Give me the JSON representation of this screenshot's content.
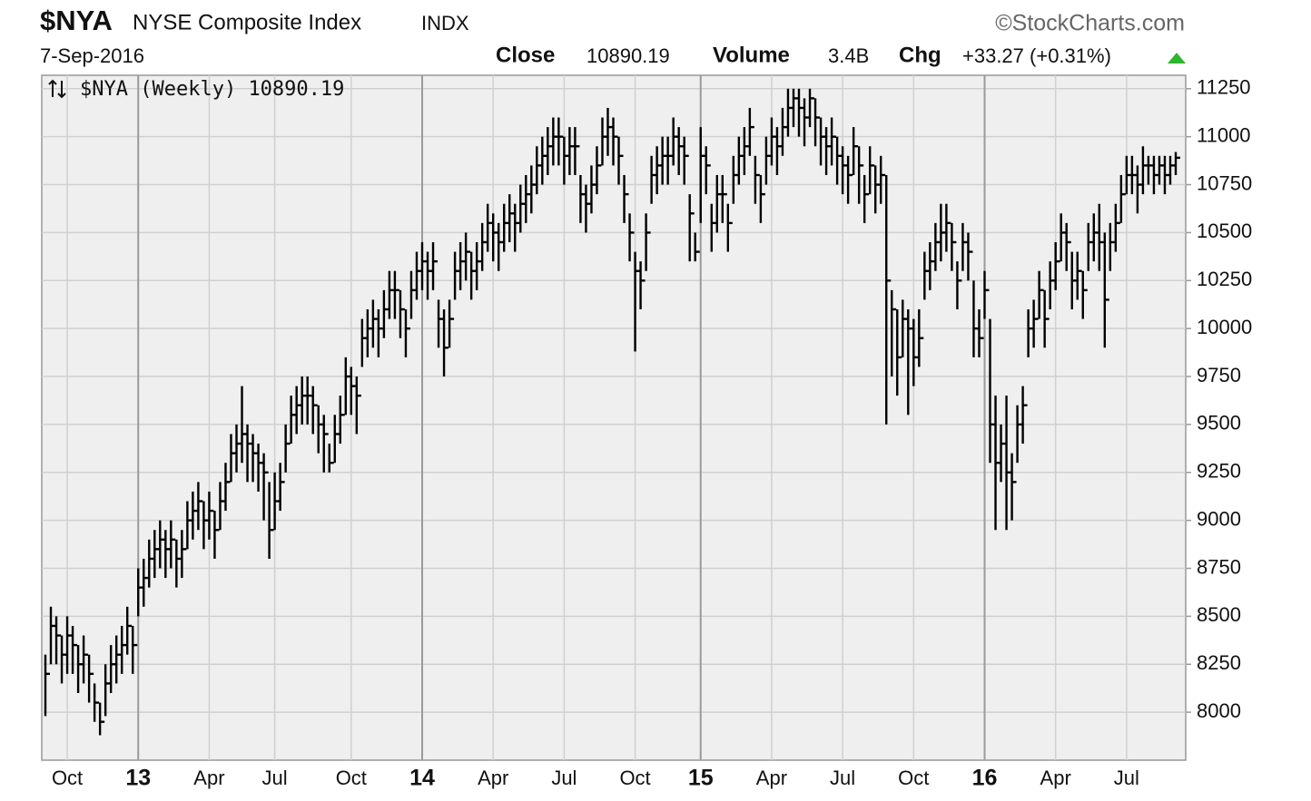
{
  "header": {
    "symbol": "$NYA",
    "name": "NYSE Composite Index",
    "exchange": "INDX",
    "source": "©StockCharts.com",
    "date": "7-Sep-2016",
    "close_label": "Close",
    "close": 10890.19,
    "volume_label": "Volume",
    "volume": "3.4B",
    "change_label": "Chg",
    "change": "+33.27 (+0.31%)"
  },
  "chart_data": {
    "type": "hlc",
    "legend_label": "$NYA (Weekly)",
    "legend_value": 10890.19,
    "categories": [
      null,
      null,
      null,
      null,
      "Oct",
      null,
      null,
      null,
      null,
      null,
      null,
      null,
      null,
      null,
      null,
      null,
      null,
      "13",
      null,
      null,
      null,
      null,
      null,
      null,
      null,
      null,
      null,
      null,
      null,
      null,
      "Apr",
      null,
      null,
      null,
      null,
      null,
      null,
      null,
      null,
      null,
      null,
      null,
      "Jul",
      null,
      null,
      null,
      null,
      null,
      null,
      null,
      null,
      null,
      null,
      null,
      null,
      null,
      "Oct",
      null,
      null,
      null,
      null,
      null,
      null,
      null,
      null,
      null,
      null,
      null,
      null,
      "14",
      null,
      null,
      null,
      null,
      null,
      null,
      null,
      null,
      null,
      null,
      null,
      null,
      "Apr",
      null,
      null,
      null,
      null,
      null,
      null,
      null,
      null,
      null,
      null,
      null,
      null,
      "Jul",
      null,
      null,
      null,
      null,
      null,
      null,
      null,
      null,
      null,
      null,
      null,
      null,
      "Oct",
      null,
      null,
      null,
      null,
      null,
      null,
      null,
      null,
      null,
      null,
      null,
      "15",
      null,
      null,
      null,
      null,
      null,
      null,
      null,
      null,
      null,
      null,
      null,
      null,
      "Apr",
      null,
      null,
      null,
      null,
      null,
      null,
      null,
      null,
      null,
      null,
      null,
      null,
      "Jul",
      null,
      null,
      null,
      null,
      null,
      null,
      null,
      null,
      null,
      null,
      null,
      null,
      "Oct",
      null,
      null,
      null,
      null,
      null,
      null,
      null,
      null,
      null,
      null,
      null,
      null,
      "16",
      null,
      null,
      null,
      null,
      null,
      null,
      null,
      null,
      null,
      null,
      null,
      null,
      "Apr",
      null,
      null,
      null,
      null,
      null,
      null,
      null,
      null,
      null,
      null,
      null,
      null,
      "Jul",
      null,
      null,
      null,
      null,
      null,
      null,
      null,
      null,
      null
    ],
    "series": [
      {
        "name": "$NYA",
        "color": "#000000",
        "values": [
          8200,
          8450,
          8400,
          8300,
          8400,
          8350,
          8250,
          8300,
          8200,
          8050,
          7950,
          8150,
          8250,
          8300,
          8350,
          8450,
          8350,
          8650,
          8700,
          8800,
          8850,
          8900,
          8850,
          8900,
          8800,
          8850,
          9000,
          9050,
          9100,
          9000,
          9050,
          8950,
          9100,
          9200,
          9350,
          9400,
          9450,
          9400,
          9350,
          9300,
          9250,
          8950,
          9100,
          9200,
          9400,
          9550,
          9600,
          9650,
          9650,
          9600,
          9500,
          9450,
          9300,
          9450,
          9550,
          9750,
          9700,
          9650,
          9950,
          10000,
          10050,
          10000,
          10100,
          10200,
          10200,
          10100,
          10000,
          10200,
          10300,
          10350,
          10300,
          10350,
          10050,
          9900,
          10050,
          10300,
          10350,
          10400,
          10300,
          10350,
          10450,
          10550,
          10500,
          10450,
          10550,
          10600,
          10550,
          10650,
          10700,
          10750,
          10850,
          10900,
          10950,
          11000,
          11000,
          10900,
          10950,
          10950,
          10700,
          10650,
          10750,
          10850,
          11000,
          11050,
          11000,
          10900,
          10700,
          10500,
          10300,
          10250,
          10500,
          10800,
          10850,
          10900,
          10900,
          11000,
          10950,
          10900,
          10600,
          10400,
          10900,
          10850,
          10550,
          10700,
          10700,
          10550,
          10800,
          10900,
          10950,
          11050,
          10800,
          10700,
          10900,
          11000,
          10950,
          11050,
          11150,
          11200,
          11150,
          11100,
          11200,
          11100,
          11000,
          10950,
          11000,
          10900,
          10850,
          10800,
          10950,
          10850,
          10700,
          10850,
          10750,
          10800,
          10250,
          10100,
          9850,
          10050,
          10000,
          9850,
          9950,
          10300,
          10350,
          10450,
          10500,
          10550,
          10450,
          10250,
          10450,
          10400,
          10000,
          9950,
          10200,
          9500,
          9300,
          9400,
          9250,
          9200,
          9500,
          9600,
          10000,
          10050,
          10200,
          10050,
          10250,
          10350,
          10500,
          10450,
          10250,
          10300,
          10200,
          10450,
          10500,
          10450,
          10150,
          10450,
          10550,
          10700,
          10800,
          10800,
          10750,
          10850,
          10850,
          10800,
          10850,
          10800,
          10850,
          10890.19
        ],
        "high": [
          8300,
          8550,
          8500,
          8400,
          8500,
          8450,
          8350,
          8400,
          8300,
          8150,
          8050,
          8250,
          8350,
          8400,
          8450,
          8550,
          8450,
          8750,
          8800,
          8900,
          8950,
          9000,
          8950,
          9000,
          8900,
          8950,
          9100,
          9150,
          9200,
          9100,
          9150,
          9050,
          9200,
          9300,
          9450,
          9500,
          9700,
          9500,
          9450,
          9400,
          9350,
          9200,
          9250,
          9300,
          9500,
          9650,
          9700,
          9750,
          9750,
          9700,
          9600,
          9550,
          9400,
          9550,
          9650,
          9850,
          9800,
          9750,
          10050,
          10100,
          10150,
          10100,
          10200,
          10300,
          10300,
          10200,
          10100,
          10300,
          10400,
          10450,
          10400,
          10450,
          10150,
          10100,
          10150,
          10400,
          10450,
          10500,
          10400,
          10450,
          10550,
          10650,
          10600,
          10550,
          10650,
          10700,
          10650,
          10750,
          10800,
          10850,
          10950,
          11000,
          11050,
          11100,
          11100,
          11000,
          11050,
          11050,
          10800,
          10750,
          10850,
          10950,
          11100,
          11150,
          11100,
          11000,
          10800,
          10600,
          10400,
          10350,
          10600,
          10900,
          10950,
          11000,
          11000,
          11100,
          11050,
          11000,
          10700,
          10500,
          11050,
          10950,
          10650,
          10800,
          10800,
          10650,
          10900,
          11000,
          11050,
          11150,
          10900,
          10800,
          11000,
          11100,
          11050,
          11150,
          11250,
          11250,
          11250,
          11200,
          11250,
          11200,
          11100,
          11050,
          11100,
          11000,
          10950,
          10900,
          11050,
          10950,
          10800,
          10950,
          10850,
          10900,
          10800,
          10200,
          10100,
          10150,
          10100,
          10050,
          10100,
          10400,
          10450,
          10550,
          10650,
          10650,
          10550,
          10350,
          10550,
          10500,
          10250,
          10100,
          10300,
          10050,
          9650,
          9500,
          9650,
          9350,
          9600,
          9700,
          10100,
          10150,
          10300,
          10200,
          10350,
          10450,
          10600,
          10550,
          10400,
          10400,
          10300,
          10550,
          10600,
          10650,
          10500,
          10550,
          10650,
          10800,
          10900,
          10900,
          10850,
          10950,
          10900,
          10900,
          10900,
          10900,
          10900,
          10920
        ],
        "low": [
          7980,
          8250,
          8250,
          8150,
          8200,
          8200,
          8100,
          8150,
          8050,
          7950,
          7880,
          7980,
          8100,
          8150,
          8200,
          8300,
          8200,
          8500,
          8550,
          8650,
          8700,
          8750,
          8700,
          8750,
          8650,
          8700,
          8850,
          8900,
          8950,
          8850,
          8900,
          8800,
          8950,
          9050,
          9200,
          9250,
          9300,
          9200,
          9200,
          9150,
          9000,
          8800,
          8950,
          9050,
          9250,
          9400,
          9450,
          9500,
          9500,
          9450,
          9350,
          9250,
          9250,
          9300,
          9400,
          9550,
          9550,
          9450,
          9800,
          9850,
          9900,
          9850,
          9950,
          10050,
          10050,
          9950,
          9850,
          10050,
          10150,
          10200,
          10150,
          10200,
          9900,
          9750,
          9900,
          10150,
          10200,
          10250,
          10150,
          10200,
          10300,
          10400,
          10350,
          10300,
          10400,
          10450,
          10400,
          10500,
          10550,
          10600,
          10700,
          10750,
          10800,
          10850,
          10850,
          10750,
          10800,
          10800,
          10550,
          10500,
          10600,
          10700,
          10850,
          10900,
          10850,
          10750,
          10550,
          10350,
          9880,
          10100,
          10300,
          10650,
          10700,
          10750,
          10750,
          10850,
          10800,
          10750,
          10350,
          10350,
          10550,
          10700,
          10400,
          10500,
          10550,
          10400,
          10650,
          10750,
          10800,
          10900,
          10650,
          10550,
          10750,
          10850,
          10800,
          10900,
          11000,
          11050,
          11000,
          10950,
          11050,
          10950,
          10850,
          10800,
          10850,
          10750,
          10700,
          10650,
          10800,
          10650,
          10550,
          10700,
          10600,
          10650,
          9500,
          9750,
          9650,
          9850,
          9550,
          9700,
          9800,
          10150,
          10200,
          10300,
          10350,
          10400,
          10300,
          10100,
          10300,
          10250,
          9850,
          9850,
          10050,
          9300,
          8950,
          9200,
          8950,
          9000,
          9300,
          9400,
          9850,
          9900,
          10050,
          9900,
          10100,
          10200,
          10350,
          10300,
          10100,
          10150,
          10050,
          10300,
          10350,
          10300,
          9900,
          10300,
          10400,
          10550,
          10700,
          10700,
          10600,
          10700,
          10750,
          10700,
          10750,
          10700,
          10750,
          10800
        ]
      }
    ],
    "ylim": [
      7750,
      11320
    ],
    "yticks": [
      8000,
      8250,
      8500,
      8750,
      9000,
      9250,
      9500,
      9750,
      10000,
      10250,
      10500,
      10750,
      11000,
      11250
    ],
    "grid": true
  }
}
